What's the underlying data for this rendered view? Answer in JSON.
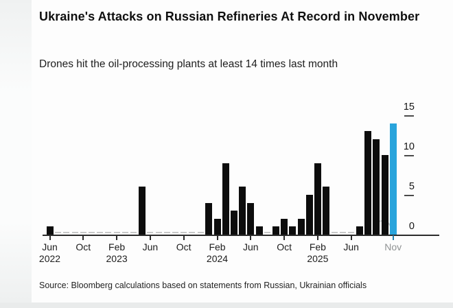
{
  "header": {
    "title": "Ukraine's Attacks on Russian Refineries At Record in November",
    "subtitle": "Drones hit the oil-processing plants at least 14 times last month"
  },
  "source": {
    "text": "Source: Bloomberg calculations based on statements from Russian, Ukrainian officials"
  },
  "colors": {
    "bar": "#0d0d0d",
    "highlight": "#29a4dc",
    "axis": "#2b2b2b",
    "muted_label": "#8f9293"
  },
  "chart_data": {
    "type": "bar",
    "title": "Ukraine's Attacks on Russian Refineries At Record in November",
    "subtitle": "Drones hit the oil-processing plants at least 14 times last month",
    "ylabel": "",
    "xlabel": "",
    "ylim": [
      0,
      15
    ],
    "yticks": [
      0,
      5,
      10,
      15
    ],
    "grid": false,
    "legend": "none",
    "x": [
      "Jun 2022",
      "Jul 2022",
      "Aug 2022",
      "Sep 2022",
      "Oct 2022",
      "Nov 2022",
      "Dec 2022",
      "Jan 2023",
      "Feb 2023",
      "Mar 2023",
      "Apr 2023",
      "May 2023",
      "Jun 2023",
      "Jul 2023",
      "Aug 2023",
      "Sep 2023",
      "Oct 2023",
      "Nov 2023",
      "Dec 2023",
      "Jan 2024",
      "Feb 2024",
      "Mar 2024",
      "Apr 2024",
      "May 2024",
      "Jun 2024",
      "Jul 2024",
      "Aug 2024",
      "Sep 2024",
      "Oct 2024",
      "Nov 2024",
      "Dec 2024",
      "Jan 2025",
      "Feb 2025",
      "Mar 2025",
      "Apr 2025",
      "May 2025",
      "Jun 2025",
      "Jul 2025",
      "Aug 2025",
      "Sep 2025",
      "Oct 2025",
      "Nov 2025"
    ],
    "values": [
      1,
      0,
      0,
      0,
      0,
      0,
      0,
      0,
      0,
      0,
      0,
      6,
      0,
      0,
      0,
      0,
      0,
      0,
      0,
      4,
      2,
      9,
      3,
      6,
      4,
      1,
      0,
      1,
      2,
      1,
      2,
      5,
      9,
      6,
      0,
      0,
      0,
      1,
      13,
      12,
      10,
      14
    ],
    "highlight_month": "Nov 2025",
    "xticks": [
      {
        "index": 0,
        "line1": "Jun",
        "line2": "2022",
        "muted": false
      },
      {
        "index": 4,
        "line1": "Oct",
        "line2": "",
        "muted": false
      },
      {
        "index": 8,
        "line1": "Feb",
        "line2": "2023",
        "muted": false
      },
      {
        "index": 12,
        "line1": "Jun",
        "line2": "",
        "muted": false
      },
      {
        "index": 16,
        "line1": "Oct",
        "line2": "",
        "muted": false
      },
      {
        "index": 20,
        "line1": "Feb",
        "line2": "2024",
        "muted": false
      },
      {
        "index": 24,
        "line1": "Jun",
        "line2": "",
        "muted": false
      },
      {
        "index": 28,
        "line1": "Oct",
        "line2": "",
        "muted": false
      },
      {
        "index": 32,
        "line1": "Feb",
        "line2": "2025",
        "muted": false
      },
      {
        "index": 36,
        "line1": "Jun",
        "line2": "",
        "muted": false
      },
      {
        "index": 41,
        "line1": "Nov",
        "line2": "",
        "muted": true
      }
    ]
  }
}
